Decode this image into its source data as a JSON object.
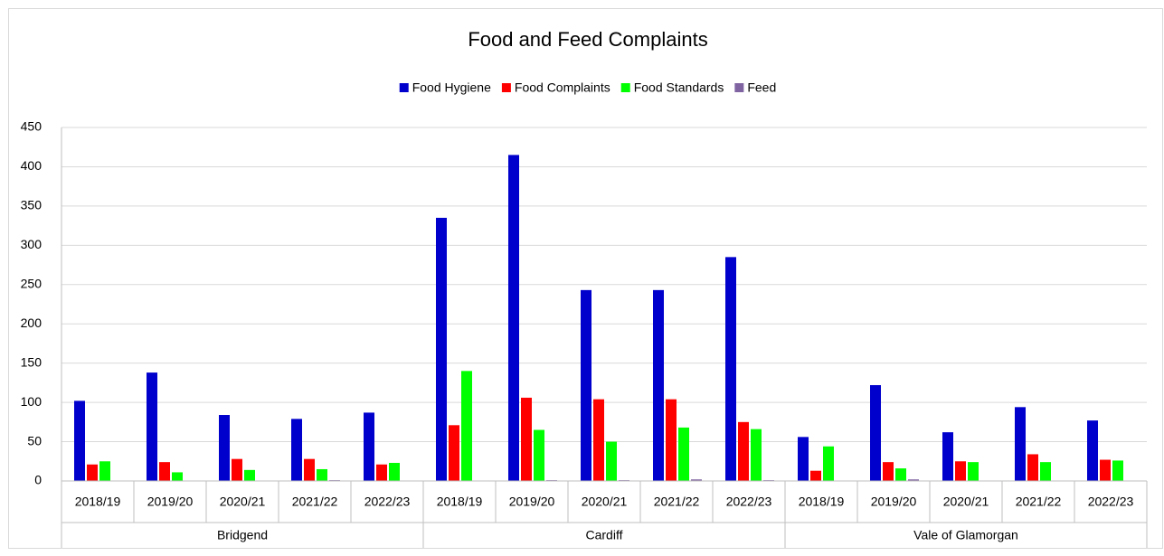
{
  "chart_data": {
    "type": "bar",
    "title": "Food and Feed Complaints",
    "categories": [
      "2018/19",
      "2019/20",
      "2020/21",
      "2021/22",
      "2022/23",
      "2018/19",
      "2019/20",
      "2020/21",
      "2021/22",
      "2022/23",
      "2018/19",
      "2019/20",
      "2020/21",
      "2021/22",
      "2022/23"
    ],
    "category_groups": [
      "Bridgend",
      "Cardiff",
      "Vale of Glamorgan"
    ],
    "series": [
      {
        "name": "Food Hygiene",
        "color": "#0000cc",
        "values": [
          102,
          138,
          84,
          79,
          87,
          335,
          415,
          243,
          243,
          285,
          56,
          122,
          62,
          94,
          77
        ]
      },
      {
        "name": "Food Complaints",
        "color": "#ff0000",
        "values": [
          21,
          24,
          28,
          28,
          21,
          71,
          106,
          104,
          104,
          75,
          13,
          24,
          25,
          34,
          27
        ]
      },
      {
        "name": "Food Standards",
        "color": "#00ff00",
        "values": [
          25,
          11,
          14,
          15,
          23,
          140,
          65,
          50,
          68,
          66,
          44,
          16,
          24,
          24,
          26
        ]
      },
      {
        "name": "Feed",
        "color": "#8064a2",
        "values": [
          0,
          0,
          0,
          1,
          0,
          0,
          1,
          1,
          2,
          1,
          0,
          2,
          0,
          0,
          0
        ]
      }
    ],
    "ylim": [
      0,
      450
    ],
    "yticks": [
      0,
      50,
      100,
      150,
      200,
      250,
      300,
      350,
      400,
      450
    ],
    "grid": true,
    "legend": "top"
  }
}
